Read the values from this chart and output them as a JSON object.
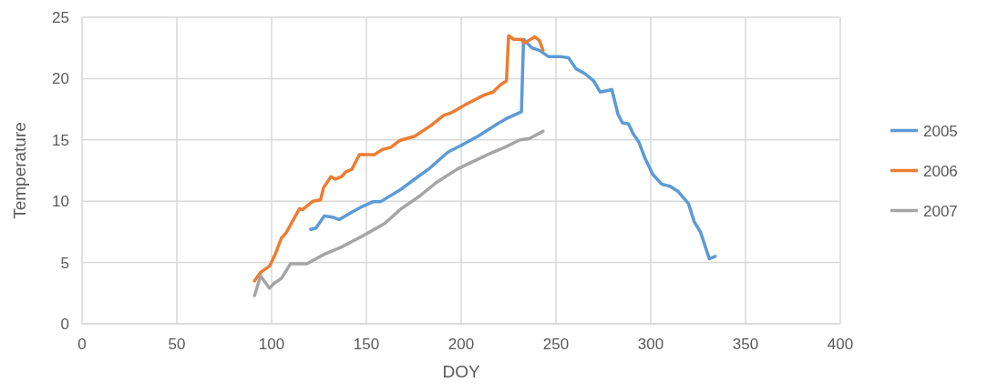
{
  "chart_data": {
    "type": "line",
    "xlabel": "DOY",
    "ylabel": "Temperature",
    "xlim": [
      0,
      400
    ],
    "xticks": [
      0,
      50,
      100,
      150,
      200,
      250,
      300,
      350,
      400
    ],
    "ylim": [
      0,
      25
    ],
    "yticks": [
      0,
      5,
      10,
      15,
      20,
      25
    ],
    "grid": true,
    "legend": "right",
    "marker": "none",
    "line_style": "solid",
    "series": [
      {
        "name": "2005",
        "color": "#5b9bd5",
        "x": [
          120.6,
          123.4,
          127.8,
          132,
          135.6,
          142.3,
          147,
          153.4,
          157.4,
          167.6,
          177.2,
          183.5,
          193,
          199.4,
          208.9,
          220,
          224.7,
          231.8,
          232.9,
          237.3,
          241.3,
          246,
          251.9,
          256.6,
          260.6,
          265.3,
          270,
          273.3,
          279.5,
          282.7,
          285,
          288.3,
          290.7,
          293.8,
          297,
          301,
          305.7,
          310.4,
          314.4,
          319.9,
          323,
          326.2,
          330.9,
          334
        ],
        "values": [
          7.7,
          7.8,
          8.8,
          8.7,
          8.5,
          9.1,
          9.5,
          9.95,
          9.95,
          10.9,
          12.0,
          12.7,
          14.0,
          14.5,
          15.3,
          16.4,
          16.8,
          17.3,
          23.2,
          22.5,
          22.3,
          21.8,
          21.8,
          21.7,
          20.8,
          20.4,
          19.8,
          18.9,
          19.1,
          17.1,
          16.4,
          16.3,
          15.5,
          14.8,
          13.5,
          12.2,
          11.4,
          11.2,
          10.8,
          9.8,
          8.3,
          7.5,
          5.3,
          5.5
        ]
      },
      {
        "name": "2006",
        "color": "#ed7d31",
        "x": [
          91,
          94.2,
          98.9,
          102,
          105.2,
          107.6,
          114.7,
          116.3,
          121.8,
          125.8,
          127.4,
          131.3,
          133.7,
          136.9,
          139.2,
          142.4,
          146.3,
          154.3,
          158.2,
          163,
          167.6,
          175.6,
          184.3,
          190.7,
          194.6,
          202.5,
          212,
          216.8,
          220.7,
          223.9,
          225,
          227.8,
          231.8,
          233.4,
          238.9,
          241.3,
          243.2
        ],
        "values": [
          3.5,
          4.2,
          4.7,
          5.7,
          7.0,
          7.4,
          9.4,
          9.3,
          10.0,
          10.1,
          11.1,
          12.0,
          11.8,
          12.0,
          12.4,
          12.6,
          13.8,
          13.8,
          14.2,
          14.4,
          14.95,
          15.3,
          16.2,
          17.0,
          17.2,
          17.9,
          18.65,
          18.9,
          19.5,
          19.8,
          23.5,
          23.2,
          23.2,
          22.9,
          23.4,
          23.1,
          22.3
        ]
      },
      {
        "name": "2007",
        "color": "#a5a5a5",
        "x": [
          91,
          94.2,
          98.9,
          101.3,
          105.2,
          110,
          118.7,
          123.4,
          128.2,
          136.1,
          144.8,
          151.9,
          159.8,
          167.7,
          178.8,
          186.7,
          197.8,
          205.7,
          216.8,
          223.1,
          231,
          235.8,
          243.2
        ],
        "values": [
          2.3,
          3.9,
          2.9,
          3.3,
          3.7,
          4.9,
          4.9,
          5.3,
          5.7,
          6.2,
          6.9,
          7.5,
          8.2,
          9.3,
          10.5,
          11.5,
          12.6,
          13.2,
          14.0,
          14.4,
          15.0,
          15.1,
          15.7
        ]
      }
    ]
  }
}
